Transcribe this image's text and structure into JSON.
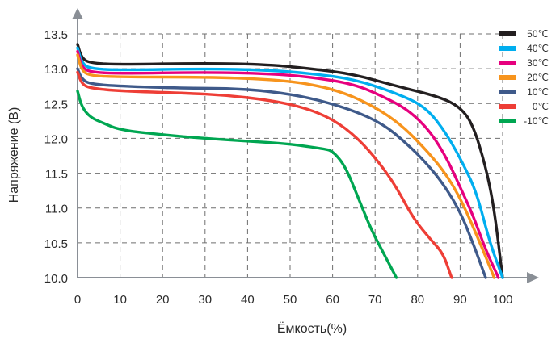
{
  "chart_data": {
    "type": "line",
    "xlabel": "Ёмкость(%)",
    "ylabel": "Напряжение (В)",
    "xlim": [
      0,
      100
    ],
    "ylim": [
      10.0,
      13.5
    ],
    "grid": true,
    "legend_position": "top-right",
    "x_ticks": [
      "0",
      "10",
      "20",
      "30",
      "40",
      "50",
      "60",
      "70",
      "80",
      "90",
      "100"
    ],
    "y_ticks": [
      "10.0",
      "10.5",
      "11.0",
      "11.5",
      "12.0",
      "12.5",
      "13.0",
      "13.5"
    ],
    "series": [
      {
        "name": "50℃",
        "color": "#231f20",
        "points": [
          [
            0,
            13.35
          ],
          [
            1,
            13.15
          ],
          [
            3,
            13.08
          ],
          [
            10,
            13.06
          ],
          [
            30,
            13.08
          ],
          [
            45,
            13.06
          ],
          [
            55,
            13.0
          ],
          [
            65,
            12.92
          ],
          [
            75,
            12.75
          ],
          [
            85,
            12.6
          ],
          [
            90,
            12.45
          ],
          [
            93,
            12.2
          ],
          [
            96,
            11.6
          ],
          [
            98,
            11.0
          ],
          [
            100,
            10.0
          ]
        ]
      },
      {
        "name": "40℃",
        "color": "#00aeef",
        "points": [
          [
            0,
            13.3
          ],
          [
            1,
            13.08
          ],
          [
            3,
            13.0
          ],
          [
            10,
            12.98
          ],
          [
            30,
            13.0
          ],
          [
            45,
            12.98
          ],
          [
            55,
            12.93
          ],
          [
            65,
            12.85
          ],
          [
            75,
            12.65
          ],
          [
            82,
            12.45
          ],
          [
            87,
            12.05
          ],
          [
            91,
            11.6
          ],
          [
            94,
            11.2
          ],
          [
            97,
            10.5
          ],
          [
            100,
            10.0
          ]
        ]
      },
      {
        "name": "30℃",
        "color": "#e6007e",
        "points": [
          [
            0,
            13.25
          ],
          [
            1,
            13.02
          ],
          [
            3,
            12.95
          ],
          [
            10,
            12.93
          ],
          [
            30,
            12.95
          ],
          [
            45,
            12.93
          ],
          [
            55,
            12.88
          ],
          [
            65,
            12.78
          ],
          [
            72,
            12.6
          ],
          [
            78,
            12.4
          ],
          [
            83,
            12.1
          ],
          [
            87,
            11.7
          ],
          [
            90,
            11.3
          ],
          [
            93,
            10.9
          ],
          [
            96,
            10.4
          ],
          [
            99,
            10.0
          ]
        ]
      },
      {
        "name": "20℃",
        "color": "#f7941d",
        "points": [
          [
            0,
            13.2
          ],
          [
            1,
            12.97
          ],
          [
            3,
            12.9
          ],
          [
            10,
            12.88
          ],
          [
            30,
            12.88
          ],
          [
            45,
            12.85
          ],
          [
            55,
            12.78
          ],
          [
            63,
            12.65
          ],
          [
            70,
            12.45
          ],
          [
            76,
            12.2
          ],
          [
            81,
            11.9
          ],
          [
            86,
            11.55
          ],
          [
            90,
            11.15
          ],
          [
            94,
            10.6
          ],
          [
            98,
            10.0
          ]
        ]
      },
      {
        "name": "10℃",
        "color": "#3f5a8a",
        "points": [
          [
            0,
            13.0
          ],
          [
            1,
            12.85
          ],
          [
            3,
            12.78
          ],
          [
            10,
            12.75
          ],
          [
            25,
            12.72
          ],
          [
            35,
            12.72
          ],
          [
            45,
            12.68
          ],
          [
            55,
            12.58
          ],
          [
            65,
            12.4
          ],
          [
            72,
            12.2
          ],
          [
            77,
            11.95
          ],
          [
            82,
            11.65
          ],
          [
            86,
            11.35
          ],
          [
            90,
            10.95
          ],
          [
            93,
            10.5
          ],
          [
            96,
            10.0
          ]
        ]
      },
      {
        "name": "0℃",
        "color": "#ee3e36",
        "points": [
          [
            0,
            12.95
          ],
          [
            1,
            12.78
          ],
          [
            3,
            12.72
          ],
          [
            10,
            12.68
          ],
          [
            25,
            12.65
          ],
          [
            35,
            12.62
          ],
          [
            45,
            12.55
          ],
          [
            53,
            12.45
          ],
          [
            60,
            12.28
          ],
          [
            66,
            12.0
          ],
          [
            71,
            11.65
          ],
          [
            75,
            11.3
          ],
          [
            79,
            10.85
          ],
          [
            83,
            10.55
          ],
          [
            86,
            10.35
          ],
          [
            88,
            10.0
          ]
        ]
      },
      {
        "name": "-10℃",
        "color": "#00a651",
        "points": [
          [
            0,
            12.68
          ],
          [
            1,
            12.45
          ],
          [
            3,
            12.3
          ],
          [
            6,
            12.22
          ],
          [
            10,
            12.12
          ],
          [
            20,
            12.05
          ],
          [
            30,
            12.0
          ],
          [
            40,
            11.96
          ],
          [
            50,
            11.92
          ],
          [
            58,
            11.85
          ],
          [
            60,
            11.82
          ],
          [
            63,
            11.6
          ],
          [
            66,
            11.15
          ],
          [
            69,
            10.7
          ],
          [
            72,
            10.35
          ],
          [
            75,
            10.0
          ]
        ]
      }
    ]
  }
}
